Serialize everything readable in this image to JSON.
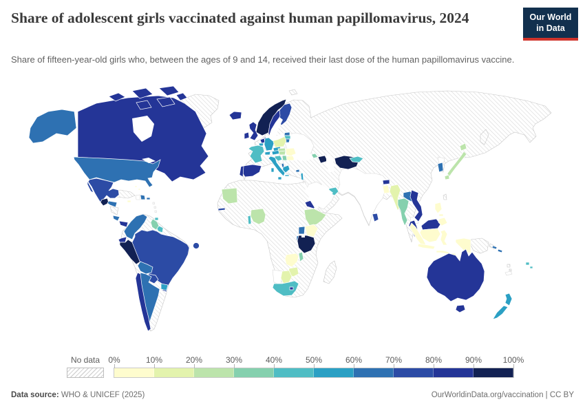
{
  "header": {
    "title": "Share of adolescent girls vaccinated against human papillomavirus, 2024",
    "logo": {
      "line1": "Our World",
      "line2": "in Data",
      "bg_color": "#12304e",
      "accent_color": "#d0342c"
    }
  },
  "subtitle": "Share of fifteen-year-old girls who, between the ages of 9 and 14, received their last dose of the human papillomavirus vaccine.",
  "legend": {
    "no_data_label": "No data",
    "tick_labels": [
      "0%",
      "10%",
      "20%",
      "30%",
      "40%",
      "50%",
      "60%",
      "70%",
      "80%",
      "90%",
      "100%"
    ],
    "palette": [
      {
        "range": "0-10%",
        "color": "#fefcce"
      },
      {
        "range": "10-20%",
        "color": "#e3f3ad"
      },
      {
        "range": "20-30%",
        "color": "#bce4ab"
      },
      {
        "range": "30-40%",
        "color": "#85d0ae"
      },
      {
        "range": "40-50%",
        "color": "#4fbdc4"
      },
      {
        "range": "50-60%",
        "color": "#2ba0c4"
      },
      {
        "range": "60-70%",
        "color": "#2e71b2"
      },
      {
        "range": "70-80%",
        "color": "#2c4ba5"
      },
      {
        "range": "80-90%",
        "color": "#243597"
      },
      {
        "range": "90-100%",
        "color": "#122153"
      }
    ]
  },
  "footer": {
    "source_label": "Data source:",
    "source_value": " WHO & UNICEF (2025)",
    "right_text": "OurWorldinData.org/vaccination | CC BY"
  },
  "chart_data": {
    "type": "choropleth",
    "title": "Share of adolescent girls vaccinated against human papillomavirus, 2024",
    "unit": "%",
    "legend_position": "bottom",
    "bins": [
      {
        "range": "90-100%",
        "color": "#122153",
        "countries": [
          "Norway",
          "Peru",
          "Guatemala",
          "Tanzania",
          "Turkmenistan",
          "Azerbaijan"
        ]
      },
      {
        "range": "80-90%",
        "color": "#243597",
        "countries": [
          "Canada",
          "Ecuador",
          "Chile",
          "Panama",
          "Iceland",
          "United Kingdom",
          "Ireland",
          "Denmark",
          "Sweden",
          "Spain",
          "Portugal",
          "Netherlands",
          "Eritrea",
          "Bhutan",
          "Lesotho",
          "Vietnam",
          "Malaysia",
          "Australia"
        ]
      },
      {
        "range": "70-80%",
        "color": "#2c4ba5",
        "countries": [
          "Mexico",
          "Brazil",
          "Paraguay",
          "Finland",
          "Sri Lanka",
          "Gambia",
          "Cape Verde"
        ]
      },
      {
        "range": "60-70%",
        "color": "#2e71b2",
        "countries": [
          "United States",
          "Colombia",
          "Bolivia",
          "Argentina",
          "Honduras",
          "Costa Rica",
          "Dominican Republic",
          "Puerto Rico",
          "Uganda",
          "Rwanda",
          "Burundi",
          "Laos",
          "South Korea",
          "Estonia",
          "Lithuania",
          "Cyprus",
          "Albania",
          "Solomon Islands"
        ]
      },
      {
        "range": "50-60%",
        "color": "#2ba0c4",
        "countries": [
          "Germany",
          "Belgium",
          "Italy",
          "Switzerland",
          "Czechia",
          "Austria",
          "Greece",
          "Israel",
          "Uruguay",
          "New Zealand"
        ]
      },
      {
        "range": "40-50%",
        "color": "#4fbdc4",
        "countries": [
          "France",
          "Latvia",
          "Croatia",
          "Slovenia",
          "Togo",
          "South Africa",
          "United Arab Emirates",
          "Kyrgyzstan",
          "Suriname",
          "Fiji",
          "Trinidad and Tobago"
        ]
      },
      {
        "range": "30-40%",
        "color": "#85d0ae",
        "countries": [
          "Guyana",
          "Serbia",
          "Georgia",
          "Malawi",
          "Thailand"
        ]
      },
      {
        "range": "20-30%",
        "color": "#bce4ab",
        "countries": [
          "Mauritania",
          "Nigeria",
          "Ethiopia",
          "Hungary",
          "Slovakia",
          "Japan"
        ]
      },
      {
        "range": "10-20%",
        "color": "#e3f3ad",
        "countries": [
          "Poland",
          "Zimbabwe",
          "Botswana",
          "Myanmar"
        ]
      },
      {
        "range": "0-10%",
        "color": "#fefcce",
        "countries": [
          "Romania",
          "Bulgaria",
          "Kenya",
          "Zambia",
          "Bangladesh",
          "Indonesia",
          "Philippines",
          "Jamaica",
          "Bahamas"
        ]
      }
    ],
    "no_data": {
      "label": "No data",
      "style": "hatched",
      "examples": [
        "Russia",
        "China",
        "India",
        "Turkey",
        "Iran",
        "Kazakhstan",
        "Ukraine",
        "Saudi Arabia",
        "North & Central Africa",
        "Cuba",
        "Venezuela",
        "Mozambique",
        "Madagascar",
        "Papua New Guinea",
        "Greenland"
      ]
    }
  },
  "map": {
    "regions": {
      "peru": 10,
      "guatemala": 10,
      "tanzania": 10,
      "turkmenistan": 10,
      "norway": 10,
      "azerbaijan": 10,
      "canada": 9,
      "canada-islands": 9,
      "ecuador": 9,
      "chile": 9,
      "panama": 9,
      "iceland": 9,
      "uk": 9,
      "ireland": 9,
      "denmark": 9,
      "sweden": 9,
      "spain": 9,
      "portugal": 9,
      "netherlands": 9,
      "eritrea": 9,
      "bhutan": 9,
      "lesotho": 9,
      "vietnam": 9,
      "malaysia-pen": 9,
      "malaysia-borneo": 9,
      "australia": 9,
      "tasmania": 9,
      "mexico": 8,
      "baja": 8,
      "brazil": 8,
      "paraguay": 8,
      "finland": 8,
      "sri-lanka": 8,
      "gambia": 8,
      "island-atlantic": 8,
      "usa": 7,
      "alaska": 7,
      "colombia": 7,
      "bolivia": 7,
      "argentina": 7,
      "honduras": 7,
      "costa-rica": 7,
      "dominican-republic": 7,
      "puerto-rico": 7,
      "uganda": 7,
      "rwanda-burundi": 7,
      "laos": 7,
      "south-korea": 7,
      "estonia": 7,
      "lithuania": 7,
      "cyprus": 7,
      "albania": 7,
      "solomon-islands": 7,
      "solomon-islands2": 7,
      "germany": 6,
      "belgium": 6,
      "italy": 6,
      "sicily": 6,
      "sardinia": 6,
      "switzerland": 6,
      "czechia": 6,
      "austria": 6,
      "greece": 6,
      "crete": 6,
      "israel": 6,
      "uruguay": 6,
      "new-zealand-north": 6,
      "new-zealand-south": 6,
      "france": 5,
      "latvia": 5,
      "slovenia-croatia": 5,
      "togo": 5,
      "south-africa": 5,
      "uae": 5,
      "kyrgyzstan": 5,
      "suriname": 5,
      "fiji": 5,
      "fiji2": 5,
      "trinidad": 5,
      "guyana": 4,
      "serbia": 4,
      "georgia": 4,
      "malawi": 4,
      "thailand": 4,
      "mauritania": 3,
      "nigeria": 3,
      "ethiopia": 3,
      "hungary": 3,
      "slovakia": 3,
      "japan": 3,
      "japan-hokkaido": 3,
      "japan-kyushu": 3,
      "poland": 2,
      "zimbabwe": 2,
      "botswana": 2,
      "myanmar": 2,
      "romania": 1,
      "bulgaria": 1,
      "kenya": 1,
      "zambia": 1,
      "bangladesh": 1,
      "indonesia-sumatra": 1,
      "indonesia-java": 1,
      "indonesia-kalimantan": 1,
      "indonesia-sulawesi": 1,
      "indonesia-sunda": 1,
      "indonesia-sunda2": 1,
      "indonesia-papua": 1,
      "philippines-luzon": 1,
      "philippines-mindanao": 1,
      "philippines-visayas": 1,
      "jamaica": 1,
      "bahamas": 1,
      "bahamas2": 1
    }
  }
}
